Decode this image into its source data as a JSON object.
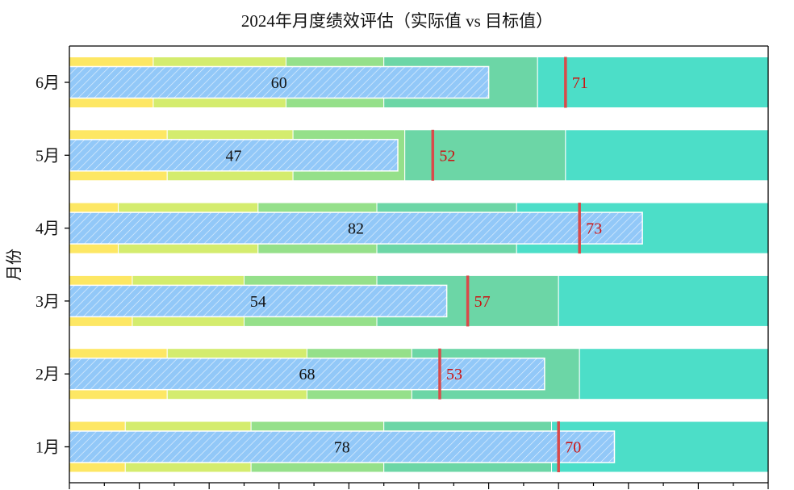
{
  "chart_data": {
    "type": "bullet",
    "title": "2024年月度绩效评估（实际值 vs 目标值）",
    "xlabel": "",
    "ylabel": "月份",
    "xlim": [
      0,
      100
    ],
    "x_ticks_labeled": false,
    "categories": [
      "1月",
      "2月",
      "3月",
      "4月",
      "5月",
      "6月"
    ],
    "series": [
      {
        "name": "实际值",
        "values": [
          78,
          68,
          54,
          82,
          47,
          60
        ]
      },
      {
        "name": "目标值",
        "values": [
          70,
          53,
          57,
          73,
          52,
          71
        ]
      }
    ],
    "range_bands": [
      [
        8,
        26,
        45,
        69,
        100
      ],
      [
        14,
        34,
        49,
        73,
        100
      ],
      [
        9,
        25,
        44,
        70,
        100
      ],
      [
        7,
        27,
        44,
        64,
        100
      ],
      [
        14,
        32,
        48,
        71,
        100
      ],
      [
        12,
        31,
        45,
        67,
        100
      ]
    ],
    "band_colors": [
      "#fde764",
      "#d4ec6e",
      "#95e08a",
      "#6cd6a6",
      "#4cdec8"
    ],
    "actual_color": "#92c8f8",
    "target_color": "#d94a4a",
    "target_label_color": "#cc1111"
  }
}
